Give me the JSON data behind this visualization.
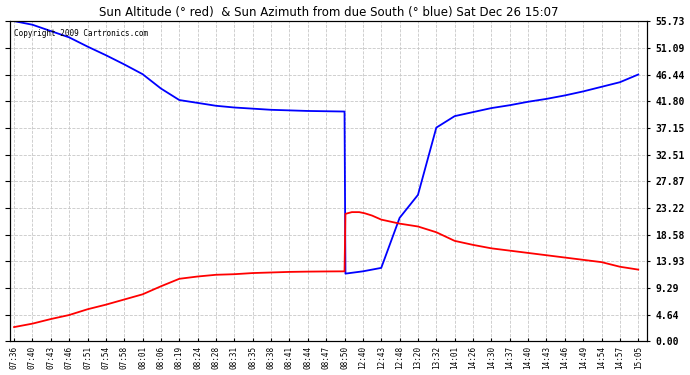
{
  "title": "Sun Altitude (° red)  & Sun Azimuth from due South (° blue) Sat Dec 26 15:07",
  "copyright": "Copyright 2009 Cartronics.com",
  "yticks": [
    0.0,
    4.64,
    9.29,
    13.93,
    18.58,
    23.22,
    27.87,
    32.51,
    37.15,
    41.8,
    46.44,
    51.09,
    55.73
  ],
  "ymin": 0.0,
  "ymax": 55.73,
  "bg_color": "#ffffff",
  "grid_color": "#c8c8c8",
  "x_labels": [
    "07:36",
    "07:40",
    "07:43",
    "07:46",
    "07:51",
    "07:54",
    "07:58",
    "08:01",
    "08:06",
    "08:19",
    "08:24",
    "08:28",
    "08:31",
    "08:35",
    "08:38",
    "08:41",
    "08:44",
    "08:47",
    "08:50",
    "12:40",
    "12:43",
    "12:48",
    "13:20",
    "13:32",
    "14:01",
    "14:26",
    "14:30",
    "14:37",
    "14:40",
    "14:43",
    "14:46",
    "14:49",
    "14:54",
    "14:57",
    "15:05"
  ],
  "blue_x": [
    0,
    1,
    2,
    3,
    4,
    5,
    6,
    7,
    8,
    9,
    10,
    11,
    12,
    13,
    14,
    15,
    16,
    17,
    18,
    18.05,
    19,
    20,
    21,
    22,
    23,
    24,
    25,
    26,
    27,
    28,
    29,
    30,
    31,
    32,
    33,
    34
  ],
  "blue_y": [
    55.73,
    55.1,
    54.0,
    52.9,
    51.3,
    49.8,
    48.2,
    46.5,
    44.0,
    42.0,
    41.5,
    41.0,
    40.7,
    40.5,
    40.3,
    40.2,
    40.1,
    40.05,
    40.0,
    11.8,
    12.2,
    12.8,
    21.5,
    25.5,
    37.2,
    39.2,
    39.9,
    40.6,
    41.1,
    41.7,
    42.2,
    42.8,
    43.5,
    44.3,
    45.1,
    46.44
  ],
  "red_x": [
    0,
    1,
    2,
    3,
    4,
    5,
    6,
    7,
    8,
    9,
    10,
    11,
    12,
    13,
    14,
    15,
    16,
    17,
    18,
    18.05,
    18.4,
    18.8,
    19.1,
    19.5,
    20,
    21,
    22,
    23,
    24,
    25,
    26,
    27,
    28,
    29,
    30,
    31,
    32,
    33,
    34
  ],
  "red_y": [
    2.5,
    3.1,
    3.9,
    4.6,
    5.6,
    6.4,
    7.3,
    8.2,
    9.6,
    10.9,
    11.3,
    11.6,
    11.7,
    11.9,
    12.0,
    12.1,
    12.15,
    12.18,
    12.2,
    22.2,
    22.5,
    22.5,
    22.3,
    21.9,
    21.2,
    20.5,
    20.0,
    19.0,
    17.5,
    16.8,
    16.2,
    15.8,
    15.4,
    15.0,
    14.6,
    14.2,
    13.8,
    13.0,
    12.5
  ]
}
